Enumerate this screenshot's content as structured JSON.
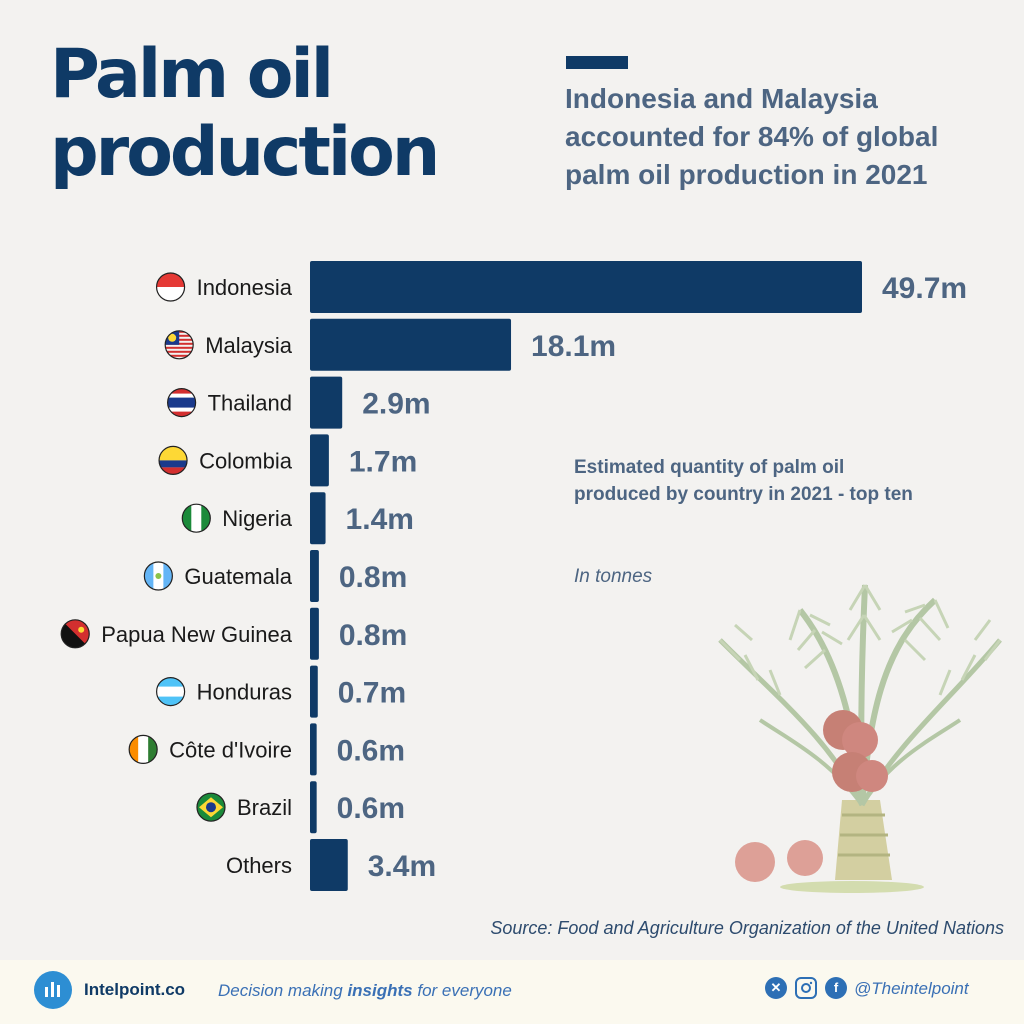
{
  "header": {
    "title": "Palm oil production",
    "subtitle": "Indonesia and Malaysia accounted for 84% of global palm oil production in 2021"
  },
  "note": {
    "description": "Estimated quantity of palm oil produced by country in 2021 - top ten",
    "unit": "In tonnes"
  },
  "source": "Source: Food and Agriculture Organization of the United Nations",
  "footer": {
    "brand": "Intelpoint.co",
    "tagline_pre": "Decision making ",
    "tagline_bold": "insights",
    "tagline_post": " for everyone",
    "handle": "@Theintelpoint",
    "social_icons": [
      "x-icon",
      "instagram-icon",
      "facebook-icon"
    ]
  },
  "colors": {
    "bar": "#0f3a66",
    "value_label": "#4d6582",
    "background": "#f3f2f0"
  },
  "chart_data": {
    "type": "bar",
    "orientation": "horizontal",
    "categories": [
      "Indonesia",
      "Malaysia",
      "Thailand",
      "Colombia",
      "Nigeria",
      "Guatemala",
      "Papua New Guinea",
      "Honduras",
      "Côte d'Ivoire",
      "Brazil",
      "Others"
    ],
    "values": [
      49.7,
      18.1,
      2.9,
      1.7,
      1.4,
      0.8,
      0.8,
      0.7,
      0.6,
      0.6,
      3.4
    ],
    "value_labels": [
      "49.7m",
      "18.1m",
      "2.9m",
      "1.7m",
      "1.4m",
      "0.8m",
      "0.8m",
      "0.7m",
      "0.6m",
      "0.6m",
      "3.4m"
    ],
    "flags": [
      "indonesia-flag-icon",
      "malaysia-flag-icon",
      "thailand-flag-icon",
      "colombia-flag-icon",
      "nigeria-flag-icon",
      "guatemala-flag-icon",
      "papua-new-guinea-flag-icon",
      "honduras-flag-icon",
      "cote-divoire-flag-icon",
      "brazil-flag-icon",
      ""
    ],
    "xlim": [
      0,
      49.7
    ],
    "grid": false,
    "legend": "none"
  }
}
